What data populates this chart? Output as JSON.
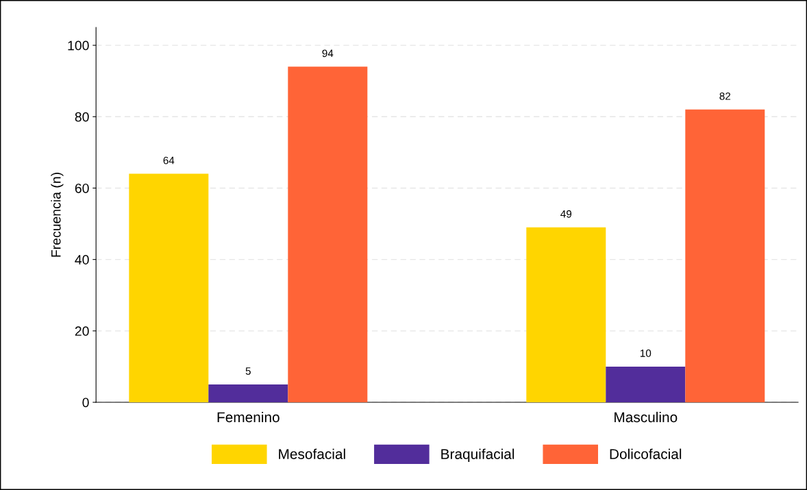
{
  "chart_data": {
    "type": "bar",
    "ylabel": "Frecuencia (n)",
    "categories": [
      "Femenino",
      "Masculino"
    ],
    "series": [
      {
        "name": "Mesofacial",
        "color": "#ffd500",
        "values": [
          64,
          49
        ]
      },
      {
        "name": "Braquifacial",
        "color": "#522d9b",
        "values": [
          5,
          10
        ]
      },
      {
        "name": "Dolicofacial",
        "color": "#ff6437",
        "values": [
          94,
          82
        ]
      }
    ],
    "ylim": [
      0,
      105
    ],
    "yticks": [
      0,
      20,
      40,
      60,
      80,
      100
    ],
    "grid": "y",
    "legend": "bottom",
    "data_labels": true
  }
}
